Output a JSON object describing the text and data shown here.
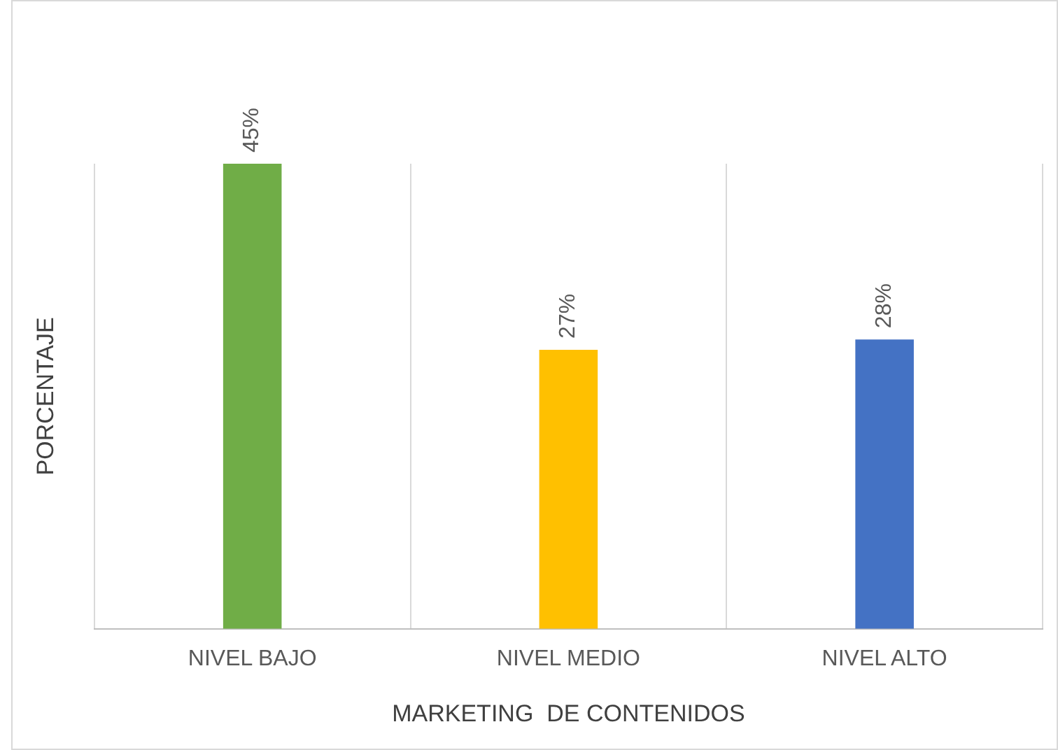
{
  "chart_data": {
    "type": "bar",
    "xlabel": "MARKETING  DE CONTENIDOS",
    "ylabel": "PORCENTAJE",
    "categories": [
      "NIVEL BAJO",
      "NIVEL MEDIO",
      "NIVEL ALTO"
    ],
    "values": [
      45,
      27,
      28
    ],
    "colors": [
      "#70ad47",
      "#ffc000",
      "#4472c4"
    ],
    "value_labels": [
      "45%",
      "27%",
      "28%"
    ],
    "grid": "x",
    "legend": false
  }
}
